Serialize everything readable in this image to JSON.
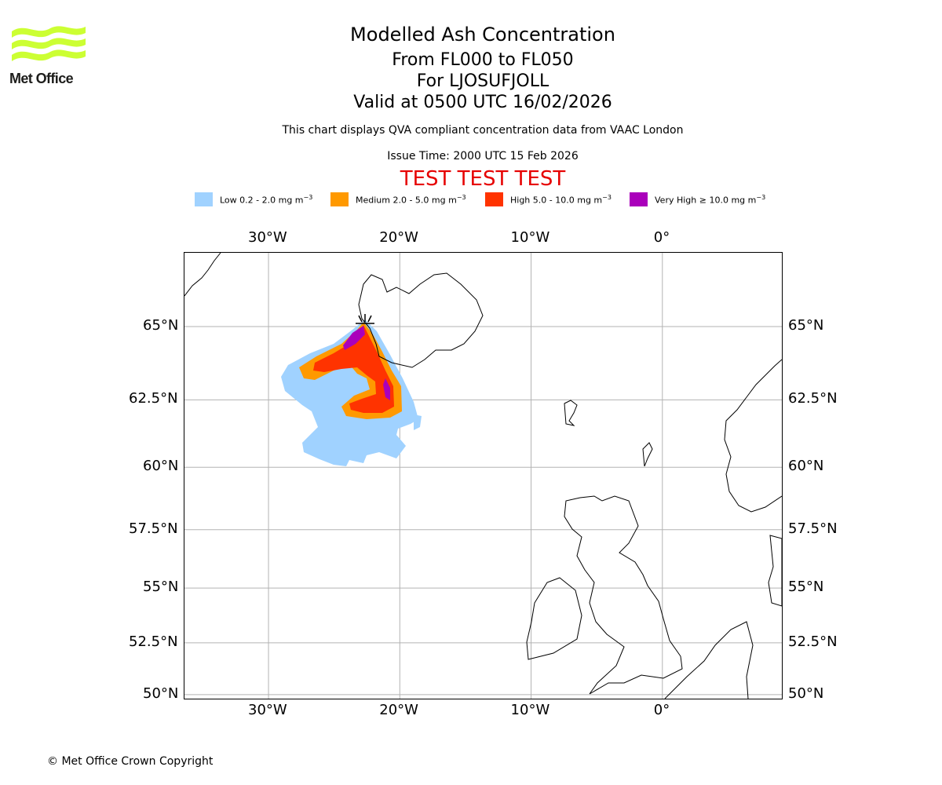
{
  "header": {
    "title": "Modelled Ash Concentration",
    "level_range": "From FL000 to FL050",
    "location": "For LJOSUFJOLL",
    "valid_time": "Valid at 0500 UTC 16/02/2026",
    "subtitle": "This chart displays QVA compliant concentration data from VAAC London",
    "issue_time": "Issue Time: 2000 UTC 15 Feb 2026",
    "test_banner": "TEST TEST TEST"
  },
  "logo": {
    "text": "Met Office",
    "color": "#ccff33"
  },
  "legend": [
    {
      "label": "Low 0.2 - 2.0 mg m",
      "unit_exp": "−3",
      "color": "#a0d2ff"
    },
    {
      "label": "Medium 2.0 - 5.0 mg m",
      "unit_exp": "−3",
      "color": "#ff9900"
    },
    {
      "label": "High 5.0 - 10.0 mg m",
      "unit_exp": "−3",
      "color": "#ff3300"
    },
    {
      "label": "Very High ≥ 10.0 mg m",
      "unit_exp": "−3",
      "color": "#aa00bb"
    }
  ],
  "map": {
    "lon_labels": [
      "30°W",
      "20°W",
      "10°W",
      "0°"
    ],
    "lat_labels": [
      "65°N",
      "62.5°N",
      "60°N",
      "57.5°N",
      "55°N",
      "52.5°N",
      "50°N"
    ],
    "lon_values": [
      -30,
      -20,
      -10,
      0
    ],
    "lat_values": [
      65,
      62.5,
      60,
      57.5,
      55,
      52.5,
      50
    ],
    "extent": {
      "lon_min": -36.4,
      "lon_max": 9.1,
      "lat_min": 49.8,
      "lat_max": 67.3
    },
    "volcano": "LJOSUFJOLL",
    "grid_color": "#b3b3b3",
    "coast_color": "#000000"
  },
  "footer": {
    "copyright": "© Met Office Crown Copyright"
  }
}
